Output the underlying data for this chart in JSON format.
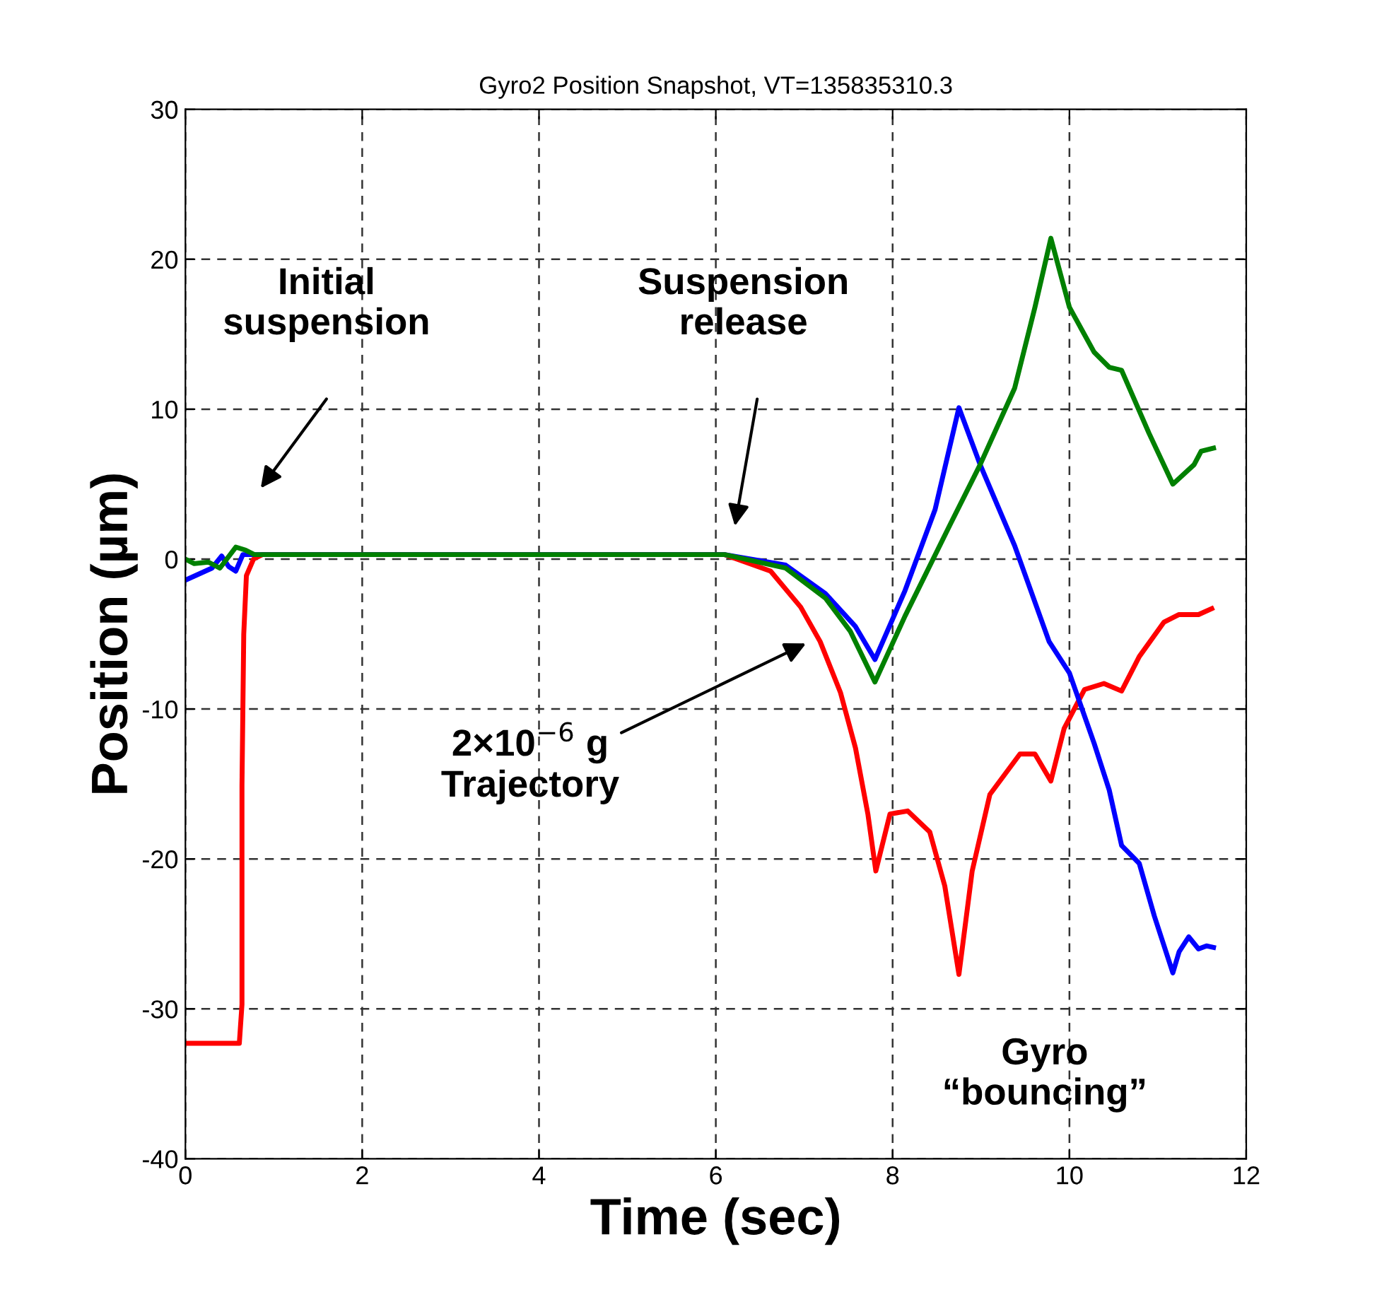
{
  "chart_data": {
    "type": "line",
    "title": "Gyro2 Position Snapshot, VT=135835310.3",
    "xlabel": "Time (sec)",
    "ylabel": "Position (µm)",
    "xlim": [
      0,
      12
    ],
    "ylim": [
      -40,
      30
    ],
    "xticks": [
      0,
      2,
      4,
      6,
      8,
      10,
      12
    ],
    "yticks": [
      -40,
      -30,
      -20,
      -10,
      0,
      10,
      20,
      30
    ],
    "grid": true,
    "line_style": "solid",
    "marker": "none",
    "series": [
      {
        "color": "#ff0000",
        "x": [
          0,
          0.61,
          0.64,
          0.64,
          0.66,
          0.69,
          0.77,
          0.87,
          6.1,
          6.62,
          6.96,
          7.18,
          7.41,
          7.58,
          7.72,
          7.81,
          7.97,
          8.17,
          8.42,
          8.59,
          8.75,
          8.9,
          9.1,
          9.44,
          9.61,
          9.79,
          9.94,
          10.17,
          10.39,
          10.59,
          10.79,
          11.07,
          11.24,
          11.46,
          11.61
        ],
        "values": [
          -32.3,
          -32.3,
          -29.7,
          -15.1,
          -5,
          -1.1,
          0,
          0.3,
          0.3,
          -0.8,
          -3.2,
          -5.5,
          -8.9,
          -12.6,
          -17,
          -20.8,
          -17,
          -16.8,
          -18.2,
          -21.8,
          -27.7,
          -20.8,
          -15.7,
          -13,
          -13,
          -14.8,
          -11.3,
          -8.7,
          -8.3,
          -8.8,
          -6.5,
          -4.2,
          -3.7,
          -3.7,
          -3.3
        ]
      },
      {
        "color": "#0000ff",
        "x": [
          0,
          0.3,
          0.41,
          0.49,
          0.57,
          0.65,
          0.78,
          6.1,
          6.79,
          7.24,
          7.58,
          7.8,
          8.14,
          8.48,
          8.75,
          8.99,
          9.38,
          9.77,
          10.0,
          10.28,
          10.45,
          10.59,
          10.79,
          10.96,
          11.17,
          11.24,
          11.35,
          11.46,
          11.55,
          11.63
        ],
        "values": [
          -1.4,
          -0.6,
          0.2,
          -0.5,
          -0.8,
          0.3,
          0.3,
          0.3,
          -0.4,
          -2.3,
          -4.5,
          -6.7,
          -2.1,
          3.3,
          10.1,
          6.3,
          0.9,
          -5.5,
          -7.6,
          -12.3,
          -15.4,
          -19.1,
          -20.3,
          -23.8,
          -27.6,
          -26.2,
          -25.2,
          -26,
          -25.8,
          -25.9
        ]
      },
      {
        "color": "#008000",
        "x": [
          0,
          0.1,
          0.26,
          0.39,
          0.57,
          0.68,
          0.78,
          6.1,
          6.79,
          7.24,
          7.52,
          7.8,
          8.14,
          8.65,
          8.99,
          9.38,
          9.61,
          9.79,
          10.0,
          10.28,
          10.45,
          10.59,
          10.9,
          11.17,
          11.41,
          11.49,
          11.63
        ],
        "values": [
          0,
          -0.3,
          -0.2,
          -0.6,
          0.8,
          0.6,
          0.3,
          0.3,
          -0.6,
          -2.6,
          -4.8,
          -8.2,
          -3.8,
          2.3,
          6.3,
          11.4,
          16.8,
          21.4,
          16.8,
          13.8,
          12.8,
          12.6,
          8.4,
          5.0,
          6.3,
          7.2,
          7.4
        ]
      }
    ],
    "annotations": [
      "Initial\nsuspension",
      "Suspension\nrelease",
      "2×10$^{−6}$ g\nTrajectory",
      "Gyro\n“bouncing”"
    ]
  }
}
